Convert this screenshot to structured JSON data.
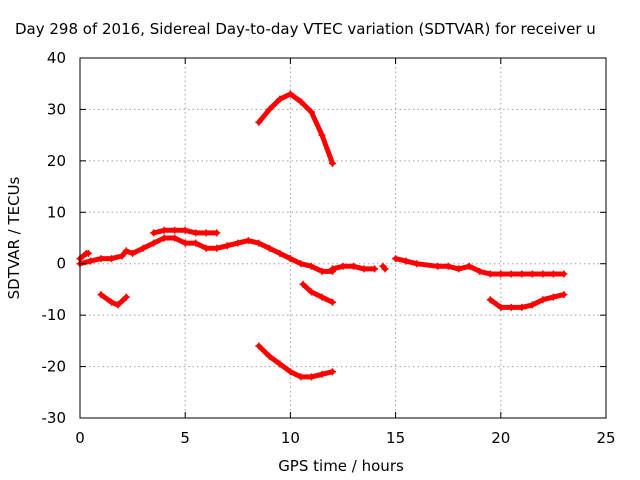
{
  "chart_data": {
    "type": "scatter",
    "title": "Day 298 of 2016, Sidereal Day-to-day VTEC variation (SDTVAR) for receiver u",
    "xlabel": "GPS time / hours",
    "ylabel": "SDTVAR / TECUs",
    "xlim": [
      0,
      25
    ],
    "ylim": [
      -30,
      40
    ],
    "xticks": [
      0,
      5,
      10,
      15,
      20,
      25
    ],
    "yticks": [
      -30,
      -20,
      -10,
      0,
      10,
      20,
      30,
      40
    ],
    "grid": true,
    "marker_color": "#ff0000",
    "series": [
      {
        "x": [
          0.0,
          0.5,
          1.0,
          1.5,
          2.0,
          2.2,
          2.5,
          3.0,
          3.5,
          4.0,
          4.5,
          5.0,
          5.5,
          6.0,
          6.5,
          7.0,
          7.5,
          8.0,
          8.5,
          9.0,
          9.5,
          10.0,
          10.5,
          11.0,
          11.5,
          12.0
        ],
        "y": [
          0.0,
          0.5,
          1.0,
          1.0,
          1.5,
          2.5,
          2.0,
          3.0,
          4.0,
          5.0,
          5.0,
          4.0,
          4.0,
          3.0,
          3.0,
          3.5,
          4.0,
          4.5,
          4.0,
          3.0,
          2.0,
          1.0,
          0.0,
          -0.5,
          -1.5,
          -1.5
        ]
      },
      {
        "x": [
          0.0,
          0.3,
          0.4
        ],
        "y": [
          1.0,
          2.0,
          2.0
        ]
      },
      {
        "x": [
          3.5,
          4.0,
          4.5,
          5.0,
          5.5,
          6.0,
          6.5
        ],
        "y": [
          6.0,
          6.5,
          6.5,
          6.5,
          6.0,
          6.0,
          6.0
        ]
      },
      {
        "x": [
          12.0,
          12.5,
          13.0,
          13.5,
          14.0
        ],
        "y": [
          -1.0,
          -0.5,
          -0.5,
          -1.0,
          -1.0
        ]
      },
      {
        "x": [
          14.4,
          14.5
        ],
        "y": [
          -0.5,
          -1.0
        ]
      },
      {
        "x": [
          15.0,
          15.5,
          16.0,
          17.0,
          17.5,
          18.0,
          18.5,
          19.0,
          19.5,
          20.0,
          20.5,
          21.0,
          21.5,
          22.0,
          22.5,
          23.0
        ],
        "y": [
          1.0,
          0.5,
          0.0,
          -0.5,
          -0.5,
          -1.0,
          -0.5,
          -1.5,
          -2.0,
          -2.0,
          -2.0,
          -2.0,
          -2.0,
          -2.0,
          -2.0,
          -2.0
        ]
      },
      {
        "x": [
          1.0,
          1.5,
          1.8,
          2.2
        ],
        "y": [
          -6.0,
          -7.5,
          -8.0,
          -6.5
        ]
      },
      {
        "x": [
          8.5,
          9.0,
          9.5,
          10.0,
          10.5,
          11.0,
          11.5,
          12.0
        ],
        "y": [
          27.5,
          30.0,
          32.0,
          33.0,
          31.5,
          29.5,
          25.0,
          19.5
        ]
      },
      {
        "x": [
          10.6,
          11.0,
          11.5,
          12.0
        ],
        "y": [
          -4.0,
          -5.5,
          -6.5,
          -7.5
        ]
      },
      {
        "x": [
          8.5,
          9.0,
          9.5,
          10.0,
          10.5,
          11.0,
          11.5,
          12.0
        ],
        "y": [
          -16.0,
          -18.0,
          -19.5,
          -21.0,
          -22.0,
          -22.0,
          -21.5,
          -21.0
        ]
      },
      {
        "x": [
          19.5,
          20.0,
          20.5,
          21.0,
          21.5,
          22.0,
          22.5,
          23.0
        ],
        "y": [
          -7.0,
          -8.5,
          -8.5,
          -8.5,
          -8.0,
          -7.0,
          -6.5,
          -6.0
        ]
      }
    ]
  }
}
